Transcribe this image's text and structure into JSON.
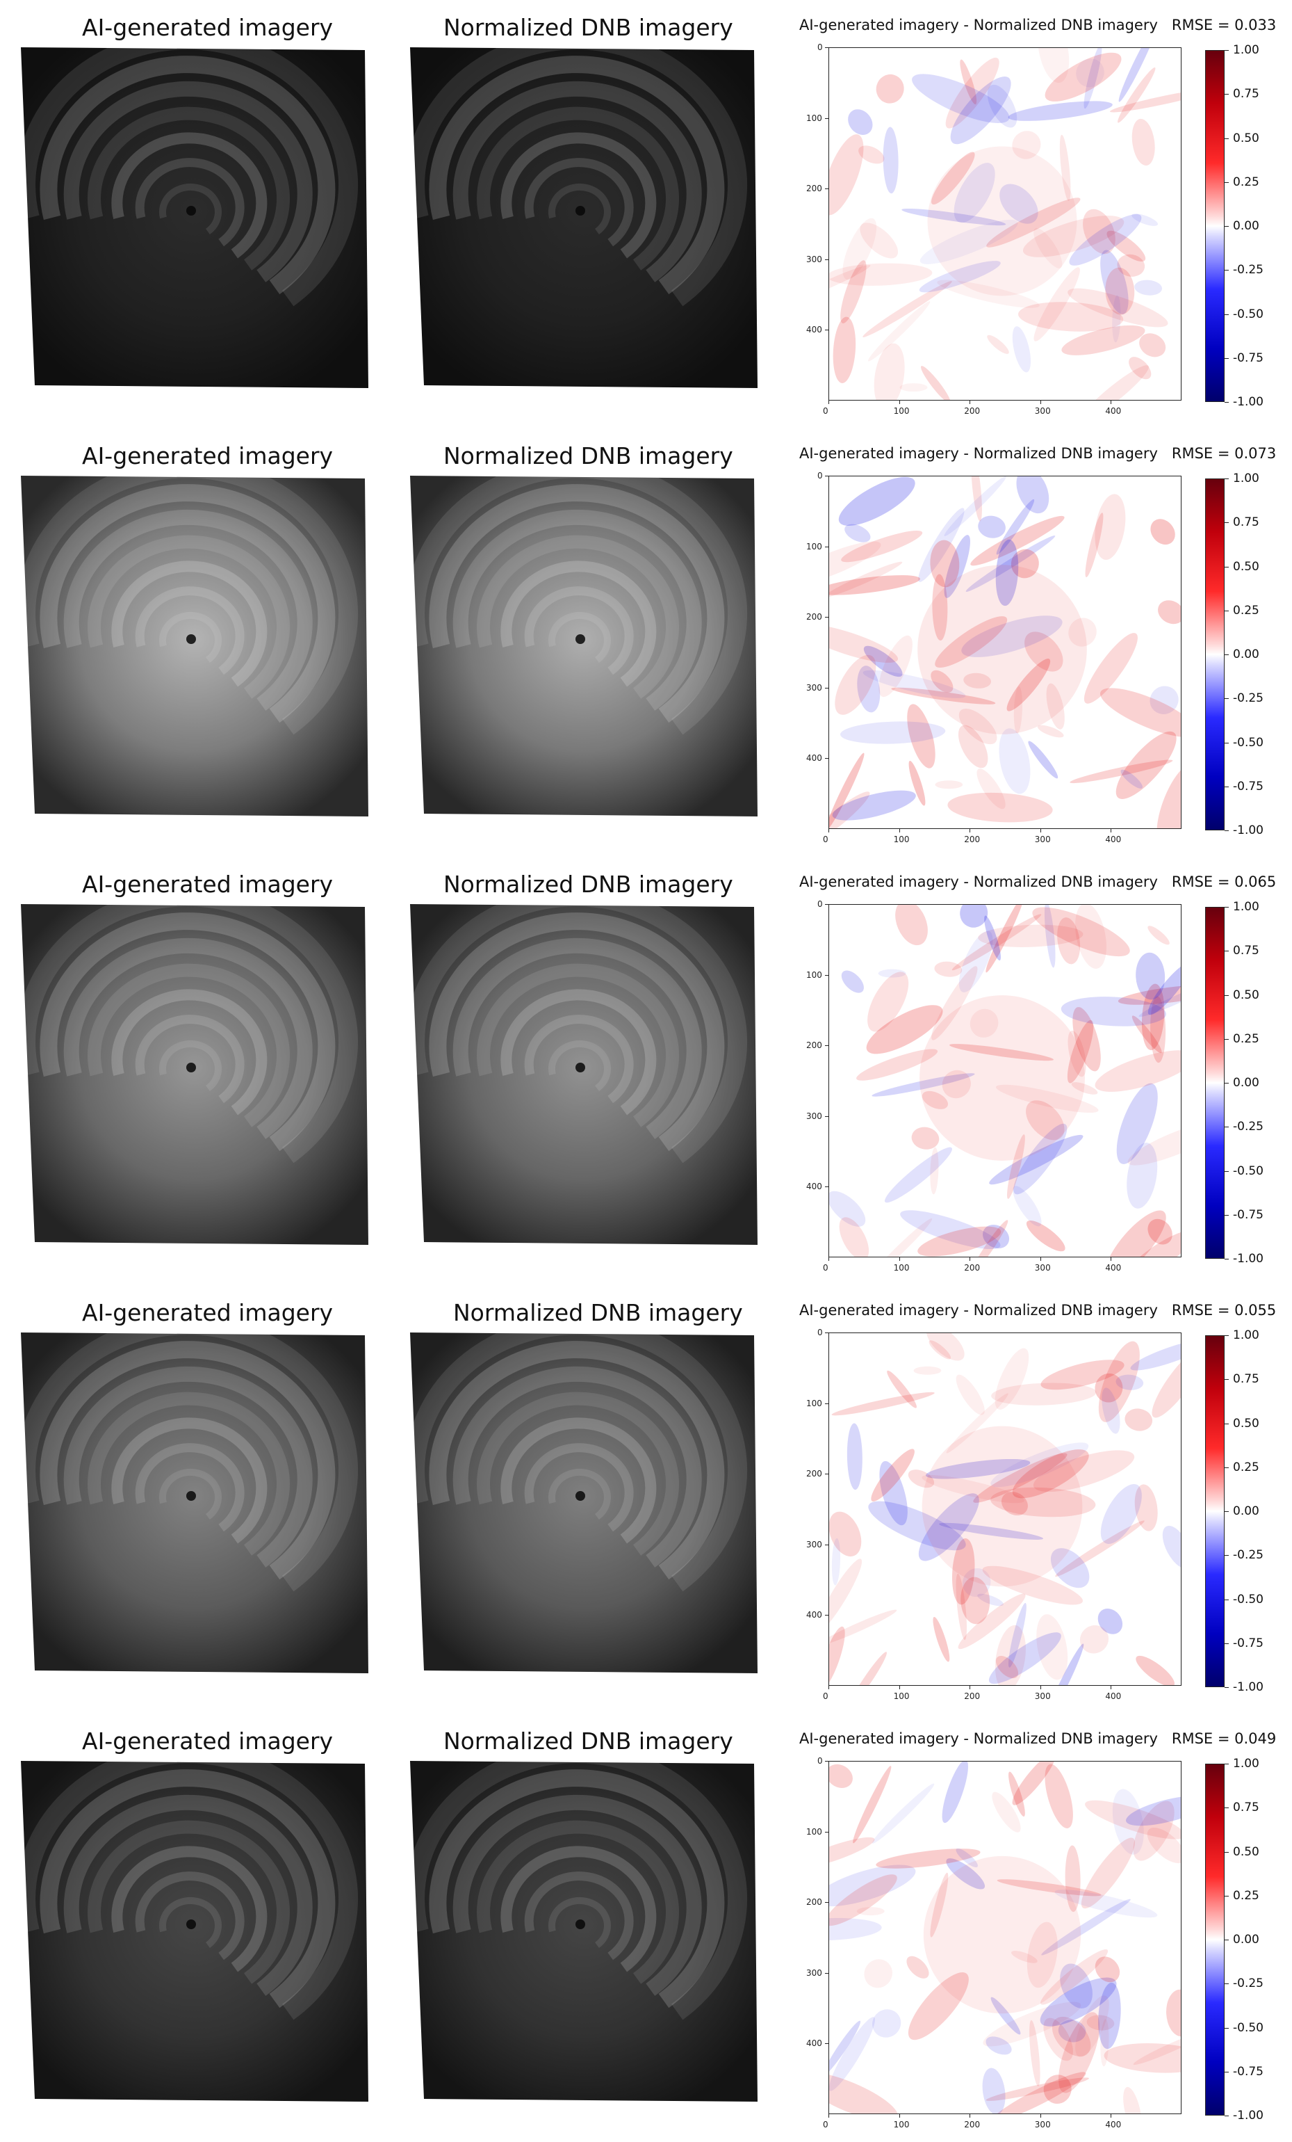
{
  "panels": [
    {
      "ai_title": "AI-generated imagery",
      "dnb_title": "Normalized DNB imagery",
      "diff_title": "AI-generated imagery - Normalized DNB imagery",
      "rmse": "RMSE = 0.033",
      "brightness": 0.12
    },
    {
      "ai_title": "AI-generated imagery",
      "dnb_title": "Normalized DNB imagery",
      "diff_title": "AI-generated imagery - Normalized DNB imagery",
      "rmse": "RMSE = 0.073",
      "brightness": 0.8
    },
    {
      "ai_title": "AI-generated imagery",
      "dnb_title": "Normalized DNB imagery",
      "diff_title": "AI-generated imagery - Normalized DNB imagery",
      "rmse": "RMSE = 0.065",
      "brightness": 0.65
    },
    {
      "ai_title": "AI-generated imagery",
      "dnb_title": "Normalized DNB imagery",
      "diff_title": "AI-generated imagery - Normalized DNB imagery",
      "rmse": "RMSE = 0.055",
      "brightness": 0.55
    },
    {
      "ai_title": "AI-generated imagery",
      "dnb_title": "Normalized DNB imagery",
      "diff_title": "AI-generated imagery - Normalized DNB imagery",
      "rmse": "RMSE = 0.049",
      "brightness": 0.25
    }
  ],
  "x_ticks": [
    "0",
    "100",
    "200",
    "300",
    "400"
  ],
  "y_ticks": [
    "0",
    "100",
    "200",
    "300",
    "400"
  ],
  "colorbar_ticks": [
    "1.00",
    "0.75",
    "0.50",
    "0.25",
    "0.00",
    "-0.25",
    "-0.50",
    "-0.75",
    "-1.00"
  ],
  "colormap": {
    "low": "#00006b",
    "mid": "#ffffff",
    "high": "#67000d"
  }
}
